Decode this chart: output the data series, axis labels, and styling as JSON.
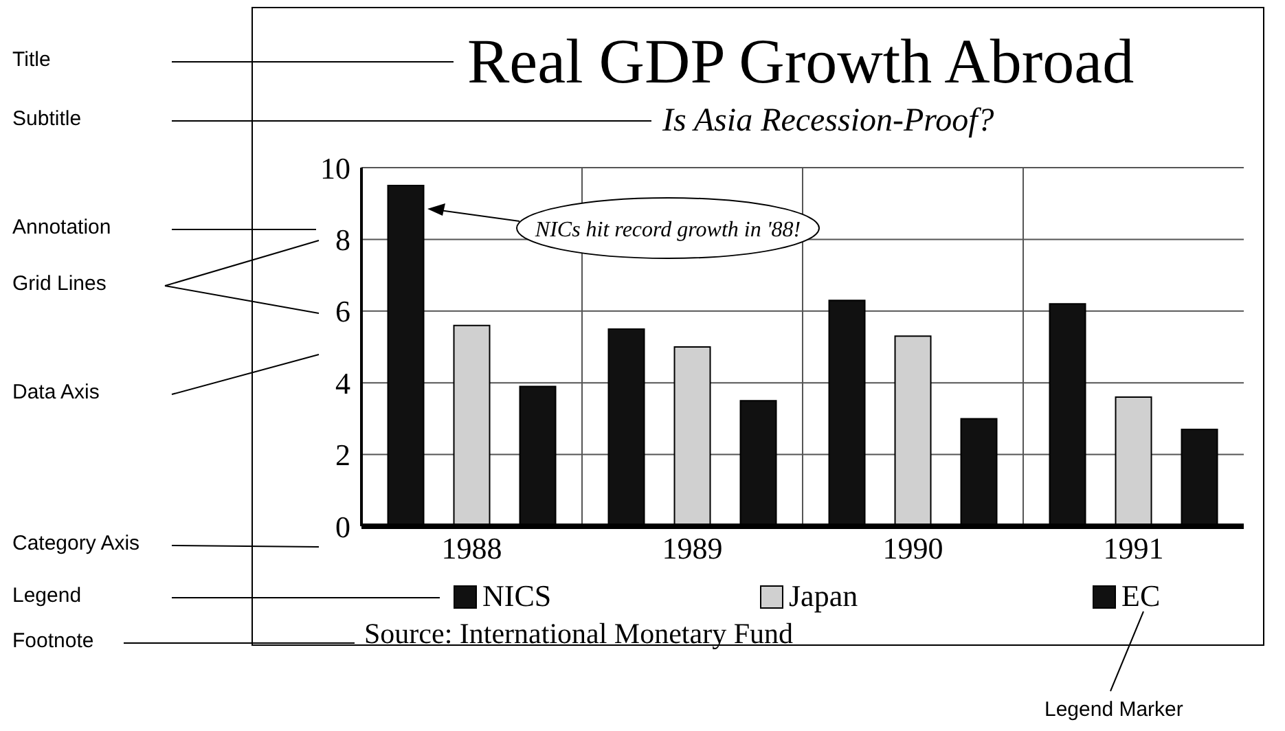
{
  "chart_data": {
    "type": "bar",
    "title": "Real GDP Growth Abroad",
    "subtitle": "Is Asia Recession-Proof?",
    "categories": [
      "1988",
      "1989",
      "1990",
      "1991"
    ],
    "series": [
      {
        "name": "NICS",
        "color": "#111111",
        "values": [
          9.5,
          5.5,
          6.3,
          6.2
        ]
      },
      {
        "name": "Japan",
        "color": "#d0d0d0",
        "values": [
          5.6,
          5.0,
          5.3,
          3.6
        ]
      },
      {
        "name": "EC",
        "color": "#111111",
        "values": [
          3.9,
          3.5,
          3.0,
          2.7
        ]
      }
    ],
    "ylim": [
      0,
      10
    ],
    "yticks": [
      0,
      2,
      4,
      6,
      8,
      10
    ],
    "grid": true,
    "legend": "bottom",
    "annotations": [
      "NICs hit record growth in '88!",
      "Source: International Monetary Fund",
      "Title",
      "Subtitle",
      "Annotation",
      "Grid Lines",
      "Data Axis",
      "Category Axis",
      "Legend",
      "Footnote",
      "Legend Marker"
    ]
  }
}
